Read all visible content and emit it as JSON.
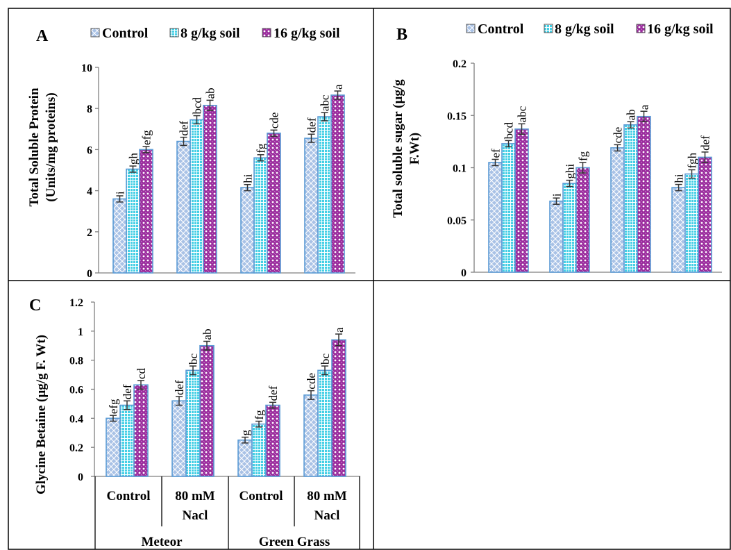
{
  "legend": {
    "entries": [
      "Control",
      "8 g/kg soil",
      "16 g/kg soil"
    ]
  },
  "x_axis": {
    "treatments": [
      "Control",
      "80 mM Nacl",
      "Control",
      "80 mM Nacl"
    ],
    "cultivars": [
      "Meteor",
      "Green Grass"
    ]
  },
  "colors": {
    "control": "#a9c2e6",
    "g8": "#43cfe5",
    "g16": "#9b2d9e",
    "bar_outline": "#5b9bd5",
    "error_bar": "#333333"
  },
  "chart_data": [
    {
      "panel": "A",
      "type": "bar",
      "ylabel": [
        "Total Soluble Protein",
        "(Units/mg proteins)"
      ],
      "ylim": [
        0,
        10
      ],
      "yticks": [
        0,
        2,
        4,
        6,
        8,
        10
      ],
      "categories": [
        "Meteor Control",
        "Meteor 80 mM Nacl",
        "Green Grass Control",
        "Green Grass 80 mM Nacl"
      ],
      "series": [
        {
          "name": "Control",
          "values": [
            3.6,
            6.4,
            4.15,
            6.55
          ],
          "errors": [
            0.15,
            0.2,
            0.15,
            0.2
          ],
          "labels": [
            "i",
            "def",
            "hi",
            "def"
          ]
        },
        {
          "name": "8 g/kg soil",
          "values": [
            5.05,
            7.45,
            5.6,
            7.6
          ],
          "errors": [
            0.15,
            0.2,
            0.15,
            0.2
          ],
          "labels": [
            "gh",
            "bcd",
            "fg",
            "abc"
          ]
        },
        {
          "name": "16 g/kg soil",
          "values": [
            6.0,
            8.15,
            6.8,
            8.65
          ],
          "errors": [
            0.15,
            0.25,
            0.15,
            0.2
          ],
          "labels": [
            "efg",
            "ab",
            "cde",
            "a"
          ]
        }
      ]
    },
    {
      "panel": "B",
      "type": "bar",
      "ylabel": [
        "Total soluble sugar (µg/g",
        "F.Wt)"
      ],
      "ylim": [
        0,
        0.2
      ],
      "yticks": [
        0,
        0.05,
        0.1,
        0.15,
        0.2
      ],
      "categories": [
        "Meteor Control",
        "Meteor 80 mM Nacl",
        "Green Grass Control",
        "Green Grass 80 mM Nacl"
      ],
      "series": [
        {
          "name": "Control",
          "values": [
            0.105,
            0.068,
            0.119,
            0.081
          ],
          "errors": [
            0.003,
            0.003,
            0.003,
            0.003
          ],
          "labels": [
            "ef",
            "i",
            "cde",
            "hi"
          ]
        },
        {
          "name": "8 g/kg soil",
          "values": [
            0.123,
            0.085,
            0.141,
            0.094
          ],
          "errors": [
            0.003,
            0.003,
            0.003,
            0.004
          ],
          "labels": [
            "bcd",
            "ghi",
            "ab",
            "fgh"
          ]
        },
        {
          "name": "16 g/kg soil",
          "values": [
            0.137,
            0.1,
            0.149,
            0.11
          ],
          "errors": [
            0.005,
            0.005,
            0.005,
            0.005
          ],
          "labels": [
            "abc",
            "fg",
            "a",
            "def"
          ]
        }
      ]
    },
    {
      "panel": "C",
      "type": "bar",
      "ylabel": [
        "Glycine Betaine (µg/g F. Wt)"
      ],
      "ylim": [
        0,
        1.2
      ],
      "yticks": [
        0,
        0.2,
        0.4,
        0.6,
        0.8,
        1,
        1.2
      ],
      "categories": [
        "Meteor Control",
        "Meteor 80 mM Nacl",
        "Green Grass Control",
        "Green Grass 80 mM Nacl"
      ],
      "series": [
        {
          "name": "Control",
          "values": [
            0.4,
            0.52,
            0.25,
            0.56
          ],
          "errors": [
            0.02,
            0.03,
            0.02,
            0.03
          ],
          "labels": [
            "efg",
            "def",
            "g",
            "cde"
          ]
        },
        {
          "name": "8 g/kg soil",
          "values": [
            0.49,
            0.73,
            0.36,
            0.73
          ],
          "errors": [
            0.03,
            0.03,
            0.02,
            0.03
          ],
          "labels": [
            "def",
            "bc",
            "fg",
            "bc"
          ]
        },
        {
          "name": "16 g/kg soil",
          "values": [
            0.63,
            0.9,
            0.49,
            0.94
          ],
          "errors": [
            0.03,
            0.03,
            0.02,
            0.04
          ],
          "labels": [
            "cd",
            "ab",
            "def",
            "a"
          ]
        }
      ]
    }
  ]
}
